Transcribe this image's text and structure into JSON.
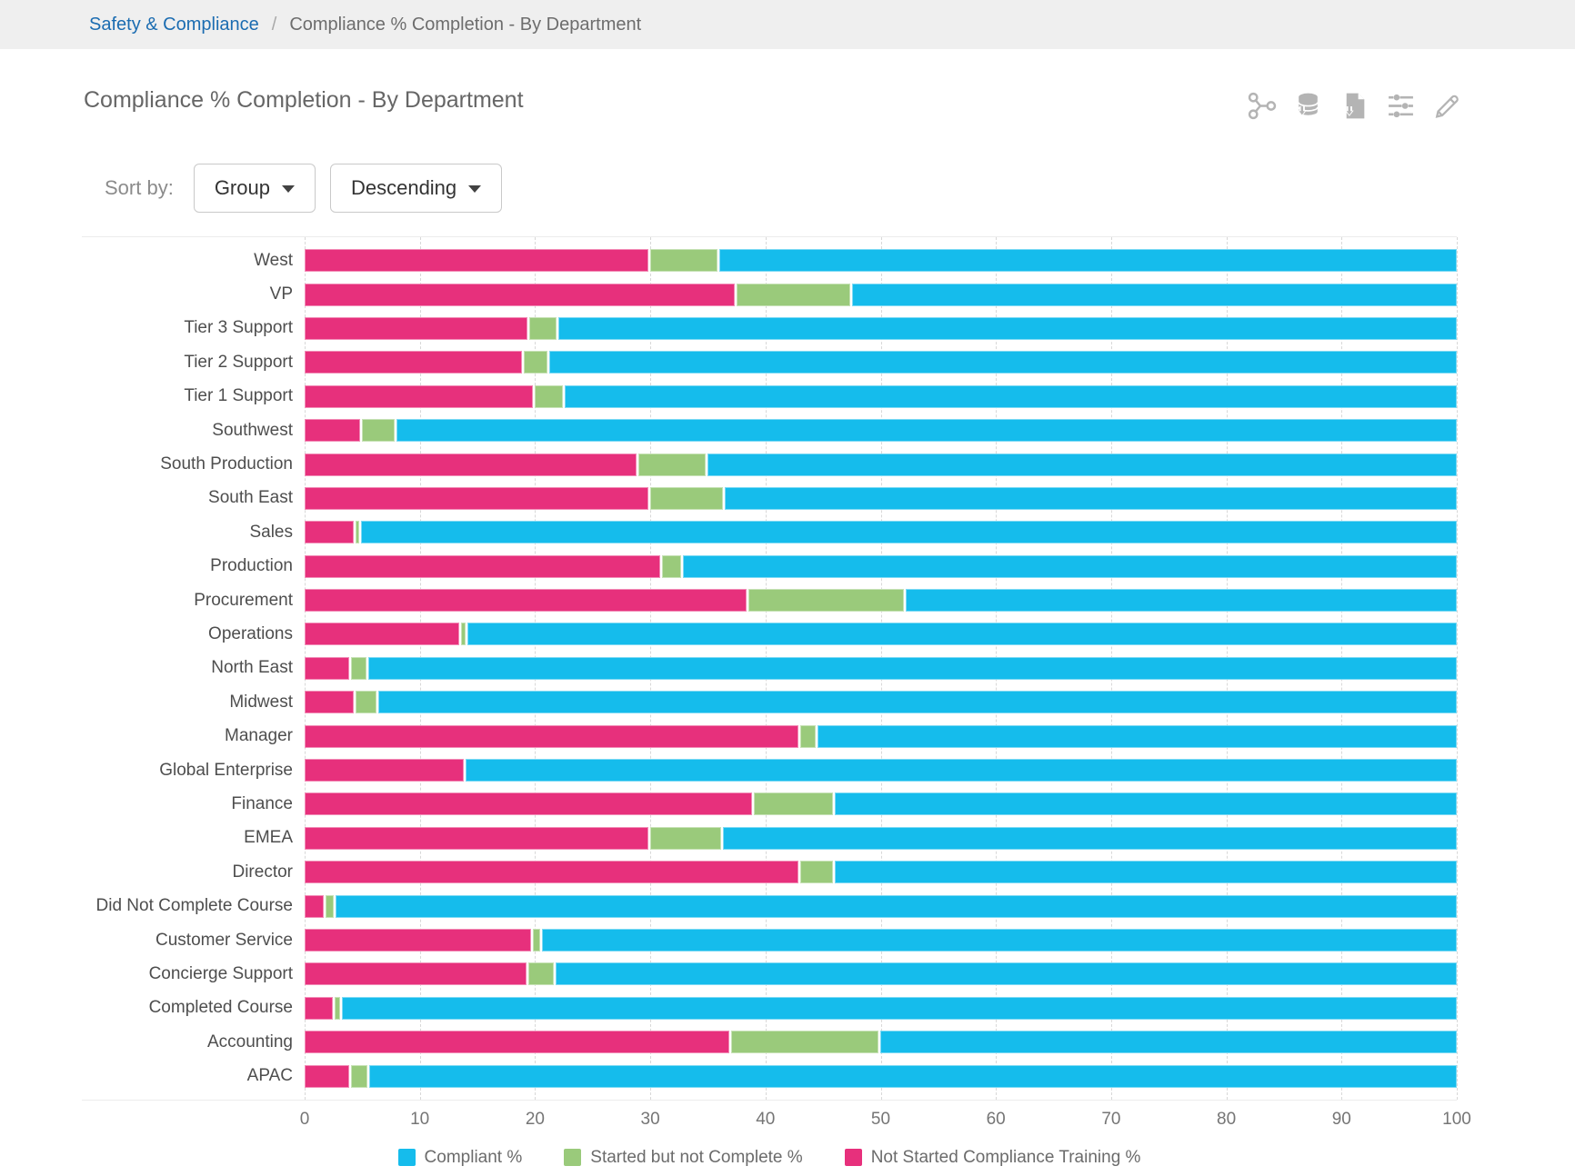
{
  "breadcrumb": {
    "link": "Safety & Compliance",
    "separator": "/",
    "current": "Compliance % Completion - By Department"
  },
  "header": {
    "title": "Compliance % Completion - By Department",
    "icons": [
      "share-icon",
      "database-export-icon",
      "export-file-icon",
      "display-settings-icon",
      "edit-icon"
    ]
  },
  "sort": {
    "label": "Sort by:",
    "field": "Group",
    "direction": "Descending"
  },
  "chart_data": {
    "type": "bar",
    "orientation": "horizontal",
    "stacked": true,
    "title": "Compliance % Completion - By Department",
    "xlabel": "",
    "ylabel": "",
    "xlim": [
      0,
      100
    ],
    "x_ticks": [
      0,
      10,
      20,
      30,
      40,
      50,
      60,
      70,
      80,
      90,
      100
    ],
    "grid": true,
    "legend_position": "bottom",
    "categories": [
      "West",
      "VP",
      "Tier 3 Support",
      "Tier 2 Support",
      "Tier 1 Support",
      "Southwest",
      "South Production",
      "South East",
      "Sales",
      "Production",
      "Procurement",
      "Operations",
      "North East",
      "Midwest",
      "Manager",
      "Global Enterprise",
      "Finance",
      "EMEA",
      "Director",
      "Did Not Complete Course",
      "Customer Service",
      "Concierge Support",
      "Completed Course",
      "Accounting",
      "APAC"
    ],
    "series": [
      {
        "key": "not-started",
        "name": "Not Started Compliance Training %",
        "color": "#E7307C",
        "values": [
          30,
          37.5,
          19.5,
          19,
          20,
          5,
          29,
          30,
          4.4,
          31,
          38.5,
          13.6,
          4,
          4.4,
          43,
          14,
          39,
          30,
          43,
          1.8,
          19.8,
          19.4,
          2.6,
          37,
          4
        ]
      },
      {
        "key": "started",
        "name": "Started but not Complete %",
        "color": "#9ACA7B",
        "values": [
          6,
          10,
          2.5,
          2.2,
          2.6,
          3,
          6,
          6.5,
          0.5,
          1.8,
          13.7,
          0.5,
          1.5,
          2,
          1.5,
          0,
          7,
          6.3,
          3,
          0.9,
          0.8,
          2.4,
          0.6,
          13,
          1.6
        ]
      },
      {
        "key": "compliant",
        "name": "Compliant %",
        "color": "#15BCEC",
        "values": [
          64,
          52.5,
          78,
          78.8,
          77.4,
          92,
          65,
          63.5,
          95.1,
          67.2,
          47.8,
          85.9,
          94.5,
          93.6,
          55.5,
          86,
          54,
          63.7,
          54,
          97.3,
          79.4,
          78.2,
          96.8,
          50,
          94.4
        ]
      }
    ],
    "legend_items": [
      {
        "label": "Compliant %",
        "color": "#15BCEC"
      },
      {
        "label": "Started but not Complete %",
        "color": "#9ACA7B"
      },
      {
        "label": "Not Started Compliance Training %",
        "color": "#E7307C"
      }
    ]
  }
}
